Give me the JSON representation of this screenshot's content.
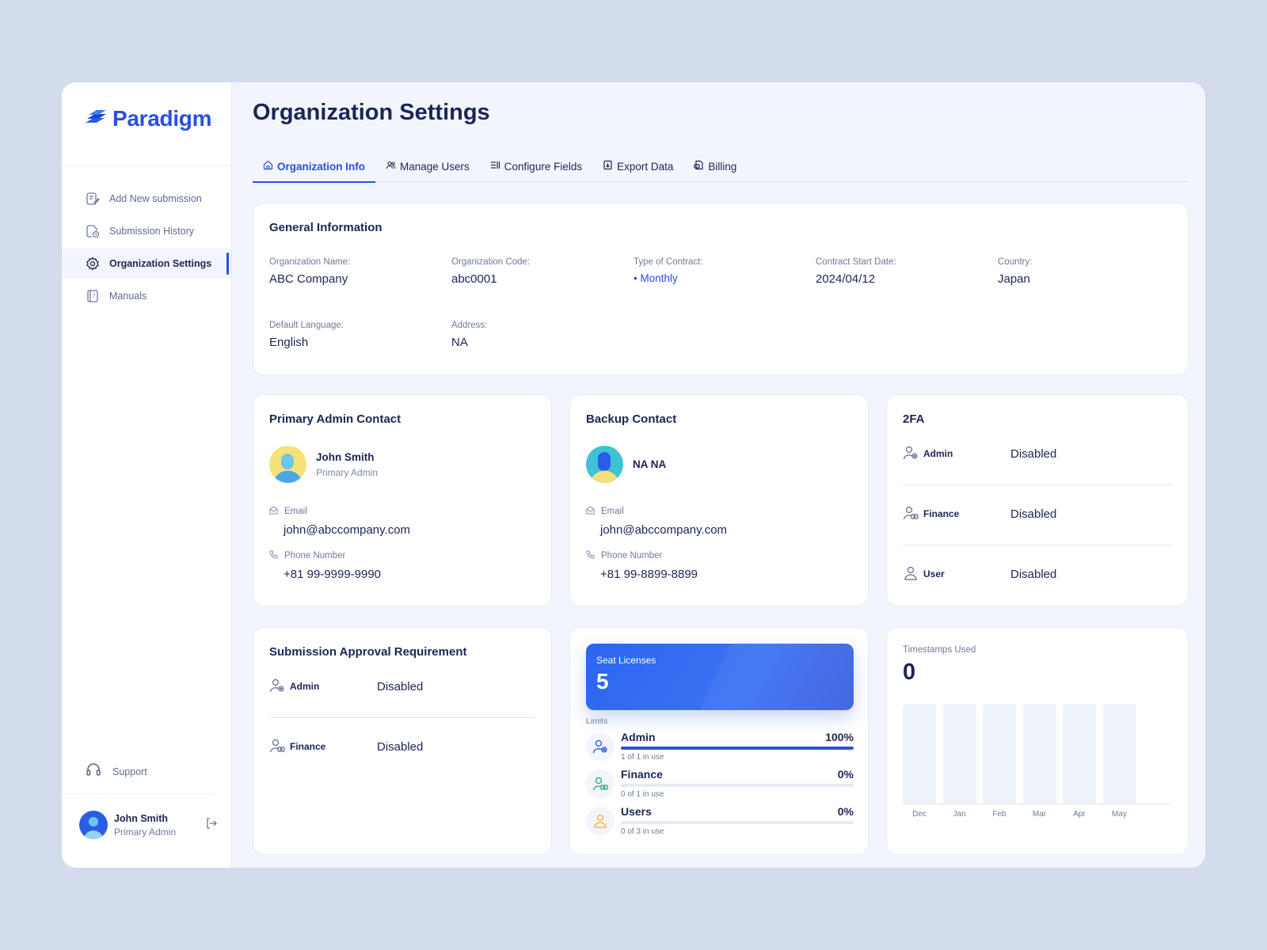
{
  "sidebar": {
    "logo_text": "Paradigm",
    "items": [
      {
        "label": "Add New submission",
        "icon": "edit-document-icon",
        "active": false
      },
      {
        "label": "Submission History",
        "icon": "document-clock-icon",
        "active": false
      },
      {
        "label": "Organization Settings",
        "icon": "gear-icon",
        "active": true
      },
      {
        "label": "Manuals",
        "icon": "book-icon",
        "active": false
      }
    ],
    "support_label": "Support",
    "user": {
      "name": "John Smith",
      "role": "Primary Admin"
    }
  },
  "page": {
    "title": "Organization Settings"
  },
  "tabs": [
    {
      "label": "Organization Info",
      "icon": "home-icon",
      "active": true
    },
    {
      "label": "Manage Users",
      "icon": "users-icon",
      "active": false
    },
    {
      "label": "Configure Fields",
      "icon": "list-icon",
      "active": false
    },
    {
      "label": "Export Data",
      "icon": "export-icon",
      "active": false
    },
    {
      "label": "Billing",
      "icon": "billing-icon",
      "active": false
    }
  ],
  "general_info": {
    "title": "General Information",
    "fields": [
      {
        "label": "Organization Name:",
        "value": "ABC Company"
      },
      {
        "label": "Organization Code:",
        "value": "abc0001"
      },
      {
        "label": "Type of Contract:",
        "value": "• Monthly"
      },
      {
        "label": "Contract Start Date:",
        "value": "2024/04/12"
      },
      {
        "label": "Country:",
        "value": "Japan"
      },
      {
        "label": "Default Language:",
        "value": "English"
      },
      {
        "label": "Address:",
        "value": "NA"
      }
    ]
  },
  "primary_contact": {
    "title": "Primary Admin Contact",
    "name": "John Smith",
    "role": "Primary Admin",
    "email_label": "Email",
    "email": "john@abccompany.com",
    "phone_label": "Phone Number",
    "phone": "+81 99-9999-9990"
  },
  "backup_contact": {
    "title": "Backup Contact",
    "name": "NA NA",
    "email_label": "Email",
    "email": "john@abccompany.com",
    "phone_label": "Phone Number",
    "phone": "+81 99-8899-8899"
  },
  "twofa": {
    "title": "2FA",
    "rows": [
      {
        "role": "Admin",
        "value": "Disabled"
      },
      {
        "role": "Finance",
        "value": "Disabled"
      },
      {
        "role": "User",
        "value": "Disabled"
      }
    ]
  },
  "approval": {
    "title": "Submission Approval Requirement",
    "rows": [
      {
        "role": "Admin",
        "value": "Disabled"
      },
      {
        "role": "Finance",
        "value": "Disabled"
      }
    ]
  },
  "seats": {
    "label": "Seat Licenses",
    "count": "5",
    "limits_label": "Limits",
    "limits": [
      {
        "name": "Admin",
        "pct": "100%",
        "fraction": 1.0,
        "sub": "1 of 1 in use",
        "icon_color": "#2a4fe0"
      },
      {
        "name": "Finance",
        "pct": "0%",
        "fraction": 0.0,
        "sub": "0 of 1 in use",
        "icon_color": "#1fa873"
      },
      {
        "name": "Users",
        "pct": "0%",
        "fraction": 0.0,
        "sub": "0 of 3 in use",
        "icon_color": "#f2b21b"
      }
    ]
  },
  "timestamps": {
    "label": "Timestamps Used",
    "value": "0",
    "months": [
      "Dec",
      "Jan",
      "Feb",
      "Mar",
      "Apr",
      "May"
    ]
  },
  "colors": {
    "accent": "#2a4fe0",
    "text": "#1c2557",
    "muted": "#6d7a99"
  }
}
